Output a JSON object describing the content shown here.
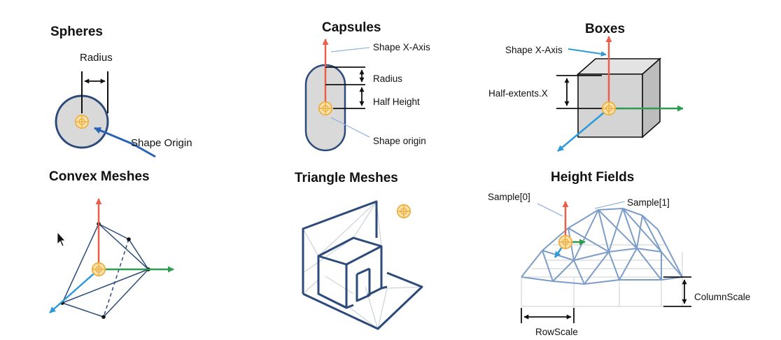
{
  "colors": {
    "x_axis": "#e8604c",
    "y_axis": "#2e9c4e",
    "z_axis": "#2f9ad9",
    "outline": "#2c4a7a",
    "mesh": "#6f8fbf",
    "fill": "#d9d9d9",
    "origin": "#f0b040"
  },
  "panels": {
    "spheres": {
      "title": "Spheres",
      "radius_label": "Radius",
      "origin_label": "Shape Origin"
    },
    "capsules": {
      "title": "Capsules",
      "x_axis_label": "Shape X-Axis",
      "radius_label": "Radius",
      "half_height_label": "Half Height",
      "origin_label": "Shape origin"
    },
    "boxes": {
      "title": "Boxes",
      "x_axis_label": "Shape X-Axis",
      "half_extents_label": "Half-extents.X"
    },
    "convex_meshes": {
      "title": "Convex Meshes"
    },
    "triangle_meshes": {
      "title": "Triangle Meshes"
    },
    "height_fields": {
      "title": "Height Fields",
      "sample0_label": "Sample[0]",
      "sample1_label": "Sample[1]",
      "column_scale_label": "ColumnScale",
      "row_scale_label": "RowScale"
    }
  },
  "cursor": "arrow-cursor-icon"
}
